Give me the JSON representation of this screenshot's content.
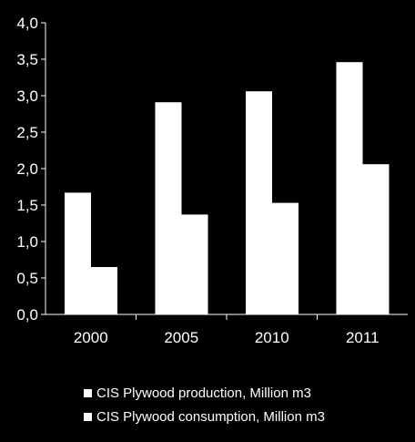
{
  "colors": {
    "background": "#000000",
    "bar": "#ffffff",
    "text": "#ffffff",
    "axis": "#ffffff"
  },
  "chart_data": {
    "type": "bar",
    "categories": [
      "2000",
      "2005",
      "2010",
      "2011"
    ],
    "series": [
      {
        "name": "CIS Plywood production, Million m3",
        "values": [
          1.67,
          2.91,
          3.06,
          3.46
        ]
      },
      {
        "name": "CIS Plywood consumption, Million m3",
        "values": [
          0.65,
          1.37,
          1.53,
          2.06
        ]
      }
    ],
    "ylim": [
      0,
      4
    ],
    "yticks": [
      "0,0",
      "0,5",
      "1,0",
      "1,5",
      "2,0",
      "2,5",
      "3,0",
      "3,5",
      "4,0"
    ],
    "grid": false,
    "legend_position": "bottom"
  }
}
